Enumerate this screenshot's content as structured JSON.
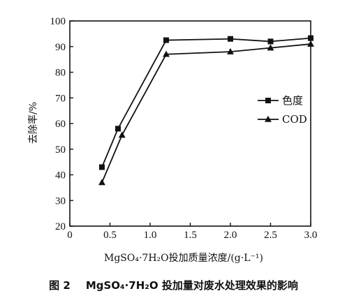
{
  "chart_data": {
    "type": "line",
    "title": "",
    "xlabel": "MgSO₄·7H₂O投加质量浓度/(g·L⁻¹)",
    "ylabel": "去除率/%",
    "xlim": [
      0,
      3.0
    ],
    "ylim": [
      20,
      100
    ],
    "xticks": [
      "0",
      "0.5",
      "1.0",
      "1.5",
      "2.0",
      "2.5",
      "3.0"
    ],
    "xtick_values": [
      0,
      0.5,
      1.0,
      1.5,
      2.0,
      2.5,
      3.0
    ],
    "yticks": [
      "20",
      "30",
      "40",
      "50",
      "60",
      "70",
      "80",
      "90",
      "100"
    ],
    "ytick_values": [
      20,
      30,
      40,
      50,
      60,
      70,
      80,
      90,
      100
    ],
    "grid": false,
    "legend_position": "right",
    "series": [
      {
        "name": "色度",
        "marker": "square",
        "x": [
          0.4,
          0.6,
          1.2,
          2.0,
          2.5,
          3.0
        ],
        "y": [
          43,
          58,
          92.5,
          93,
          92,
          93.3
        ]
      },
      {
        "name": "COD",
        "marker": "triangle",
        "x": [
          0.4,
          0.65,
          1.2,
          2.0,
          2.5,
          3.0
        ],
        "y": [
          37,
          55.5,
          87,
          88,
          89.5,
          91
        ]
      }
    ]
  },
  "caption": {
    "fig_no": "图 2",
    "text": "MgSO₄·7H₂O 投加量对废水处理效果的影响"
  }
}
